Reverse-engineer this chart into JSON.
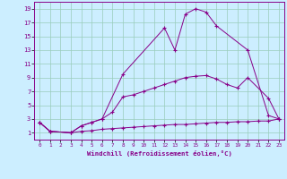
{
  "title": "",
  "xlabel": "Windchill (Refroidissement éolien,°C)",
  "ylabel": "",
  "background_color": "#cceeff",
  "line_color": "#880088",
  "xlim": [
    -0.5,
    23.5
  ],
  "ylim": [
    0,
    20
  ],
  "xticks": [
    0,
    1,
    2,
    3,
    4,
    5,
    6,
    7,
    8,
    9,
    10,
    11,
    12,
    13,
    14,
    15,
    16,
    17,
    18,
    19,
    20,
    21,
    22,
    23
  ],
  "yticks": [
    1,
    3,
    5,
    7,
    9,
    11,
    13,
    15,
    17,
    19
  ],
  "grid_color": "#99ccbb",
  "line1_x": [
    0,
    1,
    3,
    4,
    5,
    6,
    8,
    12,
    13,
    14,
    15,
    16,
    17,
    20,
    22,
    23
  ],
  "line1_y": [
    2.5,
    1.2,
    1.0,
    2.0,
    2.5,
    3.0,
    9.5,
    16.2,
    13.0,
    18.2,
    19.0,
    18.5,
    16.5,
    13.0,
    3.5,
    3.0
  ],
  "line2_x": [
    0,
    1,
    3,
    4,
    5,
    6,
    7,
    8,
    9,
    10,
    11,
    12,
    13,
    14,
    15,
    16,
    17,
    18,
    19,
    20,
    22,
    23
  ],
  "line2_y": [
    2.5,
    1.2,
    1.0,
    2.0,
    2.5,
    3.0,
    4.0,
    6.2,
    6.5,
    7.0,
    7.5,
    8.0,
    8.5,
    9.0,
    9.2,
    9.3,
    8.8,
    8.0,
    7.5,
    9.0,
    6.0,
    3.0
  ],
  "line3_x": [
    0,
    1,
    3,
    4,
    5,
    6,
    7,
    8,
    9,
    10,
    11,
    12,
    13,
    14,
    15,
    16,
    17,
    18,
    19,
    20,
    21,
    22,
    23
  ],
  "line3_y": [
    2.5,
    1.2,
    1.0,
    1.2,
    1.3,
    1.5,
    1.6,
    1.7,
    1.8,
    1.9,
    2.0,
    2.1,
    2.2,
    2.2,
    2.3,
    2.4,
    2.5,
    2.5,
    2.6,
    2.6,
    2.7,
    2.7,
    3.0
  ]
}
